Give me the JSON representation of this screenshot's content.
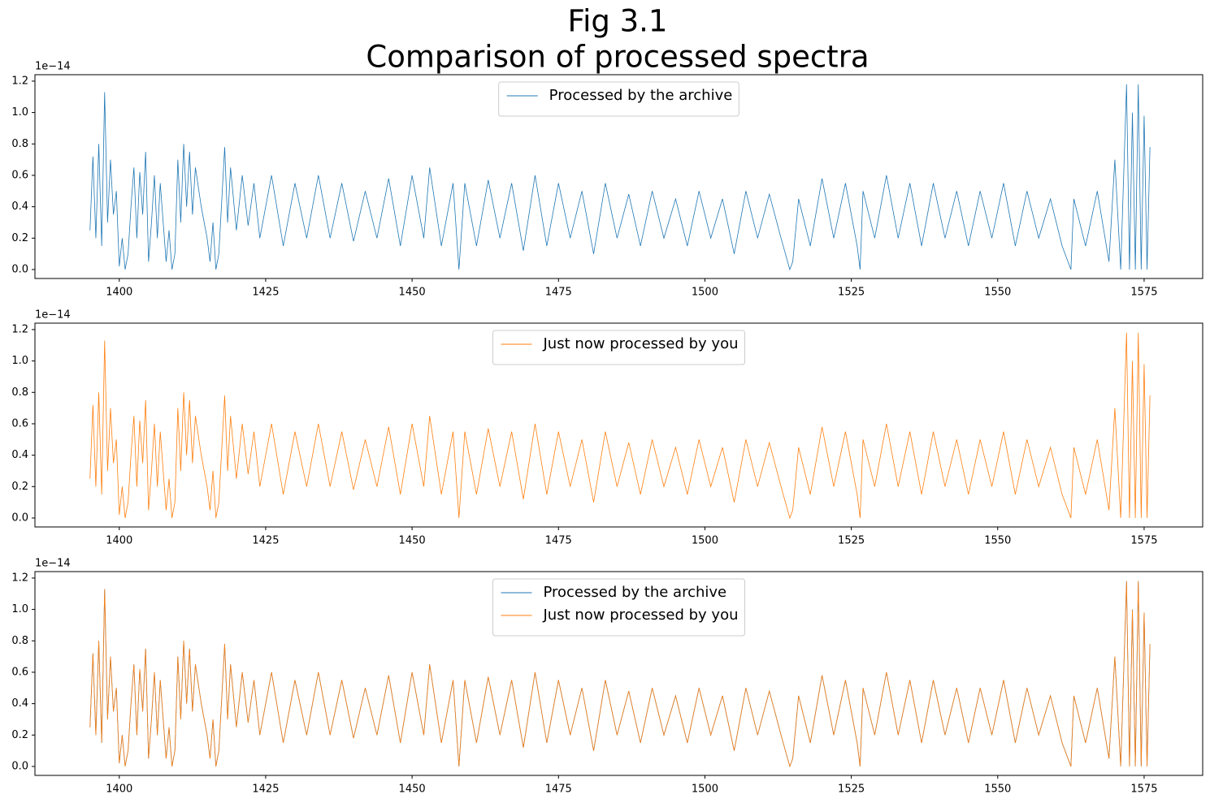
{
  "title": [
    "Fig 3.1",
    "Comparison of processed spectra"
  ],
  "chart_data": [
    {
      "type": "line",
      "y_offset_label": "1e−14",
      "legend": "upper center",
      "xlim": [
        1385.6,
        1585.0
      ],
      "ylim": [
        -0.057,
        1.241
      ],
      "xticks": [
        1400,
        1425,
        1450,
        1475,
        1500,
        1525,
        1550,
        1575
      ],
      "yticks": [
        {
          "value": 0,
          "label": "0.0"
        },
        0.2,
        0.4,
        0.6,
        0.8,
        {
          "value": 1,
          "label": "1.0"
        },
        1.2
      ],
      "x": [
        1395,
        1395.5,
        1396,
        1396.5,
        1397,
        1397.5,
        1398,
        1398.5,
        1399,
        1399.5,
        1400,
        1400.5,
        1401,
        1401.5,
        1402,
        1402.5,
        1403,
        1403.5,
        1404,
        1404.5,
        1405,
        1405.5,
        1406,
        1406.5,
        1407,
        1407.5,
        1408,
        1408.5,
        1409,
        1409.5,
        1410,
        1410.5,
        1411,
        1411.5,
        1412,
        1412.5,
        1413,
        1414,
        1415,
        1415.5,
        1416,
        1416.5,
        1417,
        1418,
        1418.5,
        1419,
        1420,
        1421,
        1422,
        1423,
        1424,
        1426,
        1428,
        1430,
        1432,
        1434,
        1436,
        1438,
        1440,
        1442,
        1444,
        1446,
        1448,
        1450,
        1452,
        1453,
        1455,
        1457,
        1458,
        1459,
        1461,
        1463,
        1465,
        1467,
        1469,
        1471,
        1473,
        1475,
        1477,
        1479,
        1481,
        1483,
        1485,
        1487,
        1489,
        1491,
        1493,
        1495,
        1497,
        1499,
        1501,
        1503,
        1505,
        1507,
        1509,
        1511,
        1513,
        1514.5,
        1515,
        1516,
        1518,
        1520,
        1522,
        1524,
        1526,
        1526.5,
        1527,
        1529,
        1531,
        1533,
        1535,
        1537,
        1539,
        1541,
        1543,
        1545,
        1547,
        1549,
        1551,
        1553,
        1555,
        1557,
        1559,
        1561,
        1562.5,
        1563,
        1565,
        1567,
        1569,
        1570,
        1571,
        1572,
        1572.5,
        1573,
        1573.5,
        1574,
        1574.5,
        1575,
        1575.5,
        1576
      ],
      "series": [
        {
          "name": "Processed by the archive",
          "color": "#1f77b4",
          "values": [
            0.25,
            0.72,
            0.2,
            0.8,
            0.15,
            1.13,
            0.3,
            0.7,
            0.35,
            0.5,
            0.02,
            0.2,
            0.0,
            0.1,
            0.4,
            0.65,
            0.2,
            0.62,
            0.35,
            0.75,
            0.05,
            0.3,
            0.6,
            0.2,
            0.55,
            0.3,
            0.05,
            0.25,
            0.0,
            0.1,
            0.7,
            0.3,
            0.8,
            0.4,
            0.75,
            0.35,
            0.65,
            0.4,
            0.2,
            0.05,
            0.3,
            0.0,
            0.1,
            0.78,
            0.3,
            0.65,
            0.25,
            0.6,
            0.28,
            0.55,
            0.2,
            0.6,
            0.15,
            0.55,
            0.2,
            0.6,
            0.2,
            0.55,
            0.18,
            0.5,
            0.2,
            0.58,
            0.15,
            0.6,
            0.2,
            0.65,
            0.15,
            0.55,
            0.0,
            0.55,
            0.15,
            0.57,
            0.2,
            0.55,
            0.12,
            0.6,
            0.15,
            0.55,
            0.2,
            0.5,
            0.1,
            0.55,
            0.2,
            0.48,
            0.15,
            0.5,
            0.2,
            0.45,
            0.15,
            0.5,
            0.2,
            0.45,
            0.1,
            0.5,
            0.2,
            0.48,
            0.2,
            0.0,
            0.05,
            0.45,
            0.15,
            0.58,
            0.2,
            0.55,
            0.15,
            0.0,
            0.5,
            0.2,
            0.6,
            0.2,
            0.55,
            0.15,
            0.55,
            0.2,
            0.5,
            0.15,
            0.5,
            0.2,
            0.55,
            0.15,
            0.5,
            0.2,
            0.45,
            0.15,
            0.0,
            0.45,
            0.15,
            0.5,
            0.05,
            0.7,
            0.0,
            1.18,
            0.0,
            1.0,
            0.0,
            1.18,
            0.0,
            0.98,
            0.0,
            0.78
          ]
        }
      ]
    },
    {
      "type": "line",
      "y_offset_label": "1e−14",
      "legend": "upper center",
      "xlim": [
        1385.6,
        1585.0
      ],
      "ylim": [
        -0.057,
        1.241
      ],
      "xticks": [
        1400,
        1425,
        1450,
        1475,
        1500,
        1525,
        1550,
        1575
      ],
      "yticks": [
        {
          "value": 0,
          "label": "0.0"
        },
        0.2,
        0.4,
        0.6,
        0.8,
        {
          "value": 1,
          "label": "1.0"
        },
        1.2
      ],
      "x": [
        1395,
        1395.5,
        1396,
        1396.5,
        1397,
        1397.5,
        1398,
        1398.5,
        1399,
        1399.5,
        1400,
        1400.5,
        1401,
        1401.5,
        1402,
        1402.5,
        1403,
        1403.5,
        1404,
        1404.5,
        1405,
        1405.5,
        1406,
        1406.5,
        1407,
        1407.5,
        1408,
        1408.5,
        1409,
        1409.5,
        1410,
        1410.5,
        1411,
        1411.5,
        1412,
        1412.5,
        1413,
        1414,
        1415,
        1415.5,
        1416,
        1416.5,
        1417,
        1418,
        1418.5,
        1419,
        1420,
        1421,
        1422,
        1423,
        1424,
        1426,
        1428,
        1430,
        1432,
        1434,
        1436,
        1438,
        1440,
        1442,
        1444,
        1446,
        1448,
        1450,
        1452,
        1453,
        1455,
        1457,
        1458,
        1459,
        1461,
        1463,
        1465,
        1467,
        1469,
        1471,
        1473,
        1475,
        1477,
        1479,
        1481,
        1483,
        1485,
        1487,
        1489,
        1491,
        1493,
        1495,
        1497,
        1499,
        1501,
        1503,
        1505,
        1507,
        1509,
        1511,
        1513,
        1514.5,
        1515,
        1516,
        1518,
        1520,
        1522,
        1524,
        1526,
        1526.5,
        1527,
        1529,
        1531,
        1533,
        1535,
        1537,
        1539,
        1541,
        1543,
        1545,
        1547,
        1549,
        1551,
        1553,
        1555,
        1557,
        1559,
        1561,
        1562.5,
        1563,
        1565,
        1567,
        1569,
        1570,
        1571,
        1572,
        1572.5,
        1573,
        1573.5,
        1574,
        1574.5,
        1575,
        1575.5,
        1576
      ],
      "series": [
        {
          "name": "Just now processed by you",
          "color": "#ff7f0e",
          "values": [
            0.25,
            0.72,
            0.2,
            0.8,
            0.15,
            1.13,
            0.3,
            0.7,
            0.35,
            0.5,
            0.02,
            0.2,
            0.0,
            0.1,
            0.4,
            0.65,
            0.2,
            0.62,
            0.35,
            0.75,
            0.05,
            0.3,
            0.6,
            0.2,
            0.55,
            0.3,
            0.05,
            0.25,
            0.0,
            0.1,
            0.7,
            0.3,
            0.8,
            0.4,
            0.75,
            0.35,
            0.65,
            0.4,
            0.2,
            0.05,
            0.3,
            0.0,
            0.1,
            0.78,
            0.3,
            0.65,
            0.25,
            0.6,
            0.28,
            0.55,
            0.2,
            0.6,
            0.15,
            0.55,
            0.2,
            0.6,
            0.2,
            0.55,
            0.18,
            0.5,
            0.2,
            0.58,
            0.15,
            0.6,
            0.2,
            0.65,
            0.15,
            0.55,
            0.0,
            0.55,
            0.15,
            0.57,
            0.2,
            0.55,
            0.12,
            0.6,
            0.15,
            0.55,
            0.2,
            0.5,
            0.1,
            0.55,
            0.2,
            0.48,
            0.15,
            0.5,
            0.2,
            0.45,
            0.15,
            0.5,
            0.2,
            0.45,
            0.1,
            0.5,
            0.2,
            0.48,
            0.2,
            0.0,
            0.05,
            0.45,
            0.15,
            0.58,
            0.2,
            0.55,
            0.15,
            0.0,
            0.5,
            0.2,
            0.6,
            0.2,
            0.55,
            0.15,
            0.55,
            0.2,
            0.5,
            0.15,
            0.5,
            0.2,
            0.55,
            0.15,
            0.5,
            0.2,
            0.45,
            0.15,
            0.0,
            0.45,
            0.15,
            0.5,
            0.05,
            0.7,
            0.0,
            1.18,
            0.0,
            1.0,
            0.0,
            1.18,
            0.0,
            0.98,
            0.0,
            0.78
          ]
        }
      ]
    },
    {
      "type": "line",
      "y_offset_label": "1e−14",
      "legend": "upper center",
      "xlim": [
        1385.6,
        1585.0
      ],
      "ylim": [
        -0.057,
        1.241
      ],
      "xticks": [
        1400,
        1425,
        1450,
        1475,
        1500,
        1525,
        1550,
        1575
      ],
      "yticks": [
        {
          "value": 0,
          "label": "0.0"
        },
        0.2,
        0.4,
        0.6,
        0.8,
        {
          "value": 1,
          "label": "1.0"
        },
        1.2
      ],
      "x": [
        1395,
        1395.5,
        1396,
        1396.5,
        1397,
        1397.5,
        1398,
        1398.5,
        1399,
        1399.5,
        1400,
        1400.5,
        1401,
        1401.5,
        1402,
        1402.5,
        1403,
        1403.5,
        1404,
        1404.5,
        1405,
        1405.5,
        1406,
        1406.5,
        1407,
        1407.5,
        1408,
        1408.5,
        1409,
        1409.5,
        1410,
        1410.5,
        1411,
        1411.5,
        1412,
        1412.5,
        1413,
        1414,
        1415,
        1415.5,
        1416,
        1416.5,
        1417,
        1418,
        1418.5,
        1419,
        1420,
        1421,
        1422,
        1423,
        1424,
        1426,
        1428,
        1430,
        1432,
        1434,
        1436,
        1438,
        1440,
        1442,
        1444,
        1446,
        1448,
        1450,
        1452,
        1453,
        1455,
        1457,
        1458,
        1459,
        1461,
        1463,
        1465,
        1467,
        1469,
        1471,
        1473,
        1475,
        1477,
        1479,
        1481,
        1483,
        1485,
        1487,
        1489,
        1491,
        1493,
        1495,
        1497,
        1499,
        1501,
        1503,
        1505,
        1507,
        1509,
        1511,
        1513,
        1514.5,
        1515,
        1516,
        1518,
        1520,
        1522,
        1524,
        1526,
        1526.5,
        1527,
        1529,
        1531,
        1533,
        1535,
        1537,
        1539,
        1541,
        1543,
        1545,
        1547,
        1549,
        1551,
        1553,
        1555,
        1557,
        1559,
        1561,
        1562.5,
        1563,
        1565,
        1567,
        1569,
        1570,
        1571,
        1572,
        1572.5,
        1573,
        1573.5,
        1574,
        1574.5,
        1575,
        1575.5,
        1576
      ],
      "series": [
        {
          "name": "Processed by the archive",
          "color": "#1f77b4",
          "values": [
            0.25,
            0.72,
            0.2,
            0.8,
            0.15,
            1.13,
            0.3,
            0.7,
            0.35,
            0.5,
            0.02,
            0.2,
            0.0,
            0.1,
            0.4,
            0.65,
            0.2,
            0.62,
            0.35,
            0.75,
            0.05,
            0.3,
            0.6,
            0.2,
            0.55,
            0.3,
            0.05,
            0.25,
            0.0,
            0.1,
            0.7,
            0.3,
            0.8,
            0.4,
            0.75,
            0.35,
            0.65,
            0.4,
            0.2,
            0.05,
            0.3,
            0.0,
            0.1,
            0.78,
            0.3,
            0.65,
            0.25,
            0.6,
            0.28,
            0.55,
            0.2,
            0.6,
            0.15,
            0.55,
            0.2,
            0.6,
            0.2,
            0.55,
            0.18,
            0.5,
            0.2,
            0.58,
            0.15,
            0.6,
            0.2,
            0.65,
            0.15,
            0.55,
            0.0,
            0.55,
            0.15,
            0.57,
            0.2,
            0.55,
            0.12,
            0.6,
            0.15,
            0.55,
            0.2,
            0.5,
            0.1,
            0.55,
            0.2,
            0.48,
            0.15,
            0.5,
            0.2,
            0.45,
            0.15,
            0.5,
            0.2,
            0.45,
            0.1,
            0.5,
            0.2,
            0.48,
            0.2,
            0.0,
            0.05,
            0.45,
            0.15,
            0.58,
            0.2,
            0.55,
            0.15,
            0.0,
            0.5,
            0.2,
            0.6,
            0.2,
            0.55,
            0.15,
            0.55,
            0.2,
            0.5,
            0.15,
            0.5,
            0.2,
            0.55,
            0.15,
            0.5,
            0.2,
            0.45,
            0.15,
            0.0,
            0.45,
            0.15,
            0.5,
            0.05,
            0.7,
            0.0,
            1.18,
            0.0,
            1.0,
            0.0,
            1.18,
            0.0,
            0.98,
            0.0,
            0.78
          ]
        },
        {
          "name": "Just now processed by you",
          "color": "#ff7f0e",
          "values": [
            0.25,
            0.72,
            0.2,
            0.8,
            0.15,
            1.13,
            0.3,
            0.7,
            0.35,
            0.5,
            0.02,
            0.2,
            0.0,
            0.1,
            0.4,
            0.65,
            0.2,
            0.62,
            0.35,
            0.75,
            0.05,
            0.3,
            0.6,
            0.2,
            0.55,
            0.3,
            0.05,
            0.25,
            0.0,
            0.1,
            0.7,
            0.3,
            0.8,
            0.4,
            0.75,
            0.35,
            0.65,
            0.4,
            0.2,
            0.05,
            0.3,
            0.0,
            0.1,
            0.78,
            0.3,
            0.65,
            0.25,
            0.6,
            0.28,
            0.55,
            0.2,
            0.6,
            0.15,
            0.55,
            0.2,
            0.6,
            0.2,
            0.55,
            0.18,
            0.5,
            0.2,
            0.58,
            0.15,
            0.6,
            0.2,
            0.65,
            0.15,
            0.55,
            0.0,
            0.55,
            0.15,
            0.57,
            0.2,
            0.55,
            0.12,
            0.6,
            0.15,
            0.55,
            0.2,
            0.5,
            0.1,
            0.55,
            0.2,
            0.48,
            0.15,
            0.5,
            0.2,
            0.45,
            0.15,
            0.5,
            0.2,
            0.45,
            0.1,
            0.5,
            0.2,
            0.48,
            0.2,
            0.0,
            0.05,
            0.45,
            0.15,
            0.58,
            0.2,
            0.55,
            0.15,
            0.0,
            0.5,
            0.2,
            0.6,
            0.2,
            0.55,
            0.15,
            0.55,
            0.2,
            0.5,
            0.15,
            0.5,
            0.2,
            0.55,
            0.15,
            0.5,
            0.2,
            0.45,
            0.15,
            0.0,
            0.45,
            0.15,
            0.5,
            0.05,
            0.7,
            0.0,
            1.18,
            0.0,
            1.0,
            0.0,
            1.18,
            0.0,
            0.98,
            0.0,
            0.78
          ]
        }
      ]
    }
  ]
}
